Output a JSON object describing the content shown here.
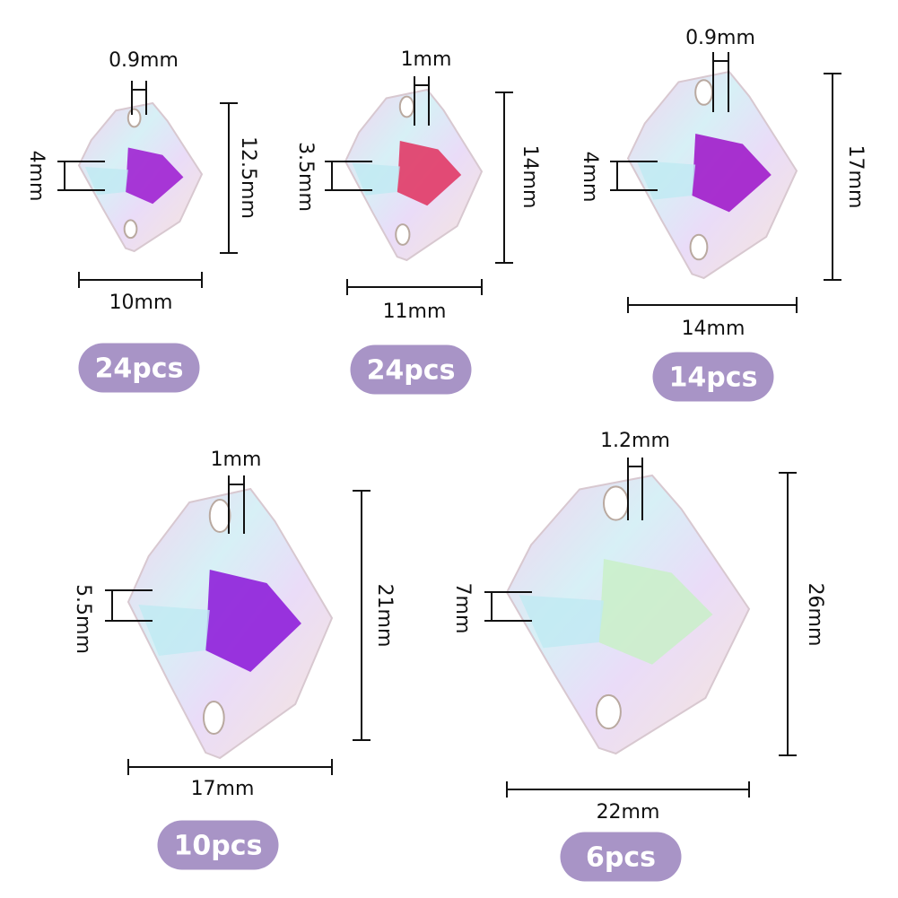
{
  "items": [
    {
      "hole": "0.9mm",
      "facet": "4mm",
      "height": "12.5mm",
      "width": "10mm",
      "count": "24pcs"
    },
    {
      "hole": "1mm",
      "facet": "3.5mm",
      "height": "14mm",
      "width": "11mm",
      "count": "24pcs"
    },
    {
      "hole": "0.9mm",
      "facet": "4mm",
      "height": "17mm",
      "width": "14mm",
      "count": "14pcs"
    },
    {
      "hole": "1mm",
      "facet": "5.5mm",
      "height": "21mm",
      "width": "17mm",
      "count": "10pcs"
    },
    {
      "hole": "1.2mm",
      "facet": "7mm",
      "height": "26mm",
      "width": "22mm",
      "count": "6pcs"
    }
  ]
}
